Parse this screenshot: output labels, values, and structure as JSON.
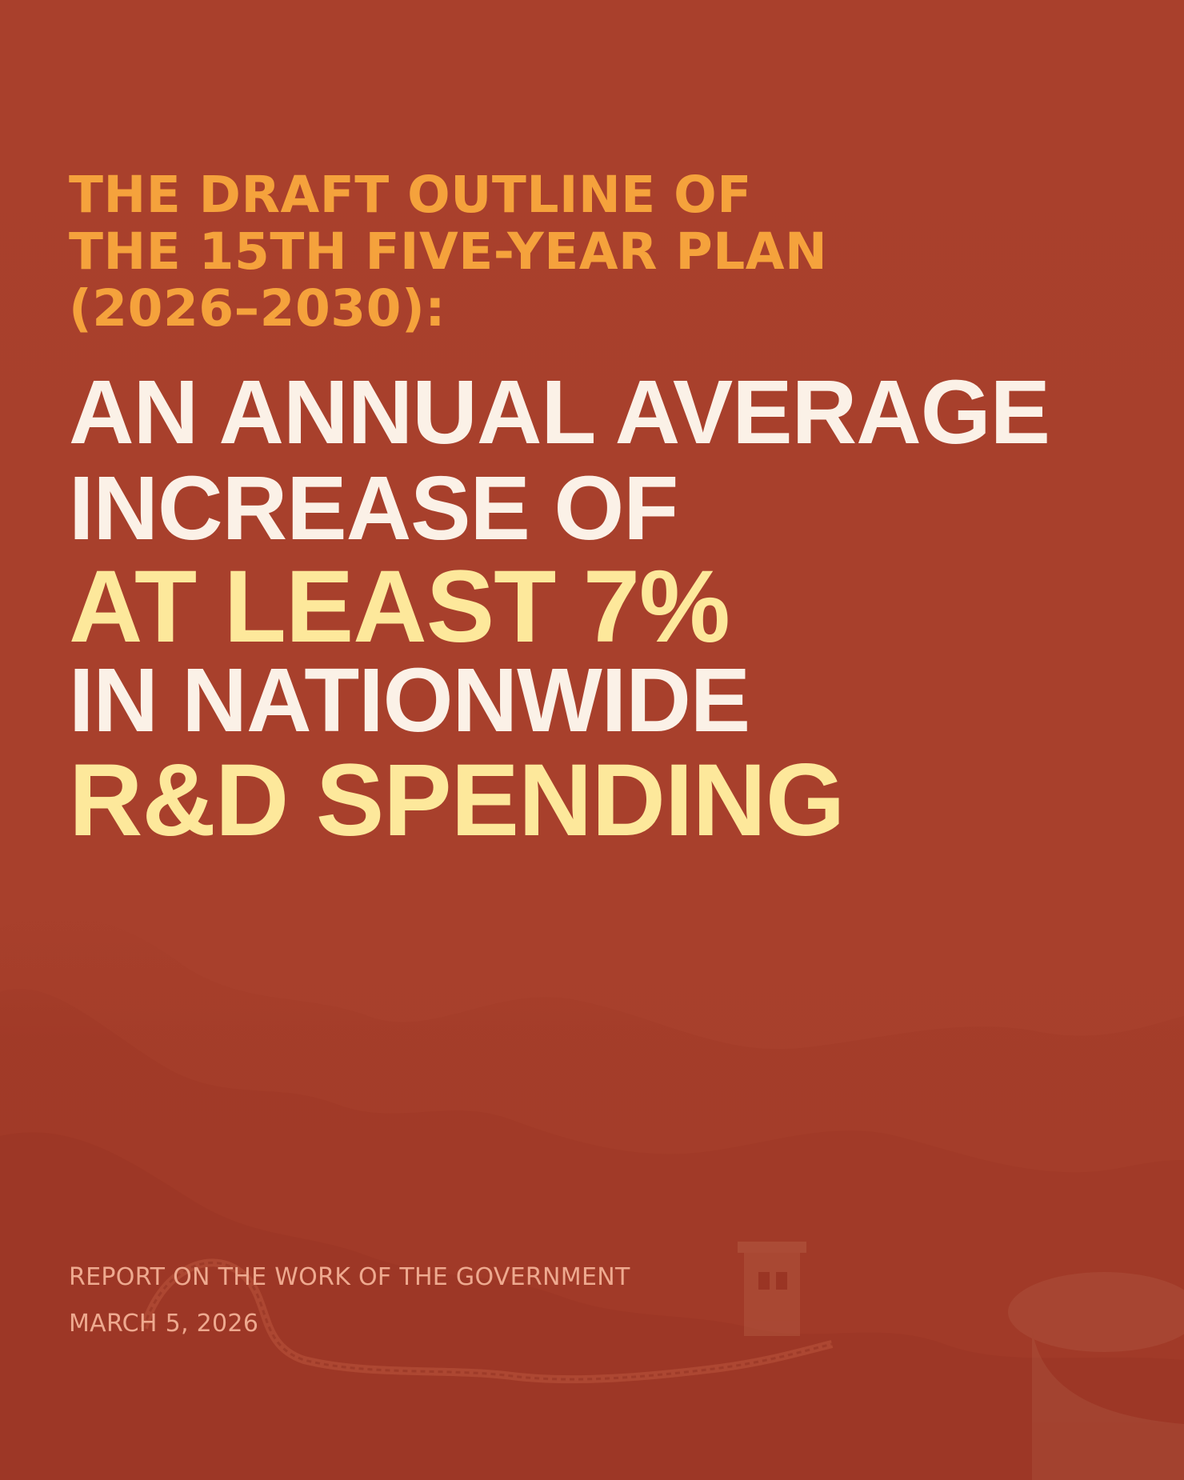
{
  "kicker": {
    "line1": "THE DRAFT OUTLINE OF",
    "line2": "THE 15TH FIVE-YEAR PLAN",
    "line3": "(2026–2030):"
  },
  "headline": {
    "line1": "AN ANNUAL AVERAGE",
    "line2": "INCREASE OF",
    "line3_highlight": "AT LEAST 7%",
    "line4": "IN NATIONWIDE",
    "line5_highlight": "R&D SPENDING"
  },
  "footer": {
    "report_title": "REPORT ON THE WORK OF THE GOVERNMENT",
    "date": "MARCH 5, 2026"
  },
  "colors": {
    "background": "#a8412d",
    "kicker": "#f5a23c",
    "headline_white": "#fbf1e7",
    "headline_highlight": "#fde89b",
    "footer_text": "#eea98f"
  }
}
